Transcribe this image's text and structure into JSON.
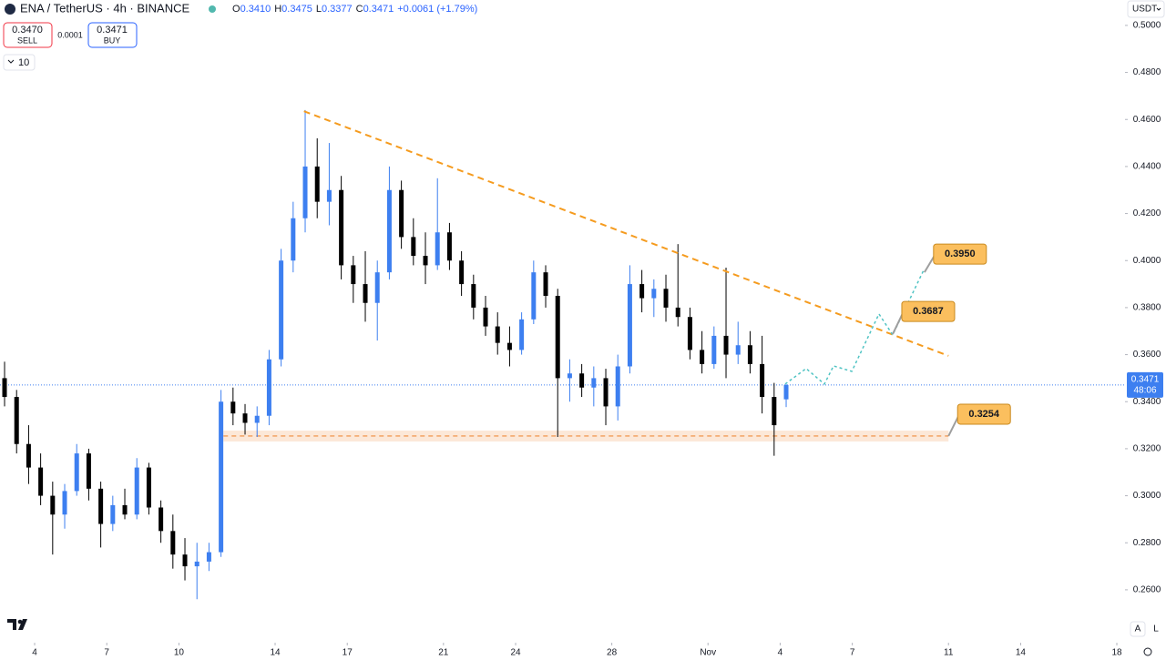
{
  "chart_data": {
    "type": "candlestick",
    "symbol": "ENA / TetherUS · 4h · BINANCE",
    "ohlc_header": {
      "o_key": "O",
      "o": "0.3410",
      "h_key": "H",
      "h": "0.3475",
      "l_key": "L",
      "l": "0.3377",
      "c_key": "C",
      "c": "0.3471",
      "change": "+0.0061 (+1.79%)"
    },
    "sell": {
      "price": "0.3470",
      "label": "SELL"
    },
    "spread": "0.0001",
    "buy": {
      "price": "0.3471",
      "label": "BUY"
    },
    "indicator_count": "10",
    "currency": "USDT",
    "price_tag": {
      "value": 0.3471,
      "label": "0.3471",
      "countdown": "48:06"
    },
    "scale_buttons": [
      "A",
      "L"
    ],
    "up_color": "#3d7ff0",
    "down_color": "#000000",
    "xlim": [
      2.56,
      49.34
    ],
    "ylim": [
      0.2379,
      0.5108
    ],
    "xticks": [
      4,
      7,
      10,
      14,
      17,
      21,
      24,
      28,
      {
        "value": 32,
        "label": "Nov"
      },
      {
        "value": 35,
        "label": "4"
      },
      {
        "value": 38,
        "label": "7"
      },
      {
        "value": 42,
        "label": "11"
      },
      {
        "value": 45,
        "label": "14"
      },
      {
        "value": 49,
        "label": "18"
      }
    ],
    "yticks": [
      {
        "value": 0.26,
        "label": "0.2600"
      },
      {
        "value": 0.28,
        "label": "0.2800"
      },
      {
        "value": 0.3,
        "label": "0.3000"
      },
      {
        "value": 0.32,
        "label": "0.3200"
      },
      {
        "value": 0.34,
        "label": "0.3400"
      },
      {
        "value": 0.36,
        "label": "0.3600"
      },
      {
        "value": 0.38,
        "label": "0.3800"
      },
      {
        "value": 0.4,
        "label": "0.4000"
      },
      {
        "value": 0.42,
        "label": "0.4200"
      },
      {
        "value": 0.44,
        "label": "0.4400"
      },
      {
        "value": 0.46,
        "label": "0.4600"
      },
      {
        "value": 0.48,
        "label": "0.4800"
      },
      {
        "value": 0.5,
        "label": "0.5000"
      }
    ],
    "x": [
      2.75,
      3.25,
      3.75,
      4.25,
      4.75,
      5.25,
      5.75,
      6.25,
      6.75,
      7.25,
      7.75,
      8.25,
      8.75,
      9.25,
      9.75,
      10.25,
      10.75,
      11.25,
      11.75,
      12.25,
      12.75,
      13.25,
      13.75,
      14.25,
      14.75,
      15.25,
      15.75,
      16.25,
      16.75,
      17.25,
      17.75,
      18.25,
      18.75,
      19.25,
      19.75,
      20.25,
      20.75,
      21.25,
      21.75,
      22.25,
      22.75,
      23.25,
      23.75,
      24.25,
      24.75,
      25.25,
      25.75,
      26.25,
      26.75,
      27.25,
      27.75,
      28.25,
      28.75,
      29.25,
      29.75,
      30.25,
      30.75,
      31.25,
      31.75,
      32.25,
      32.75,
      33.25,
      33.75,
      34.25,
      34.75,
      35.25
    ],
    "open": [
      0.35,
      0.342,
      0.322,
      0.312,
      0.3,
      0.292,
      0.302,
      0.318,
      0.303,
      0.288,
      0.296,
      0.292,
      0.312,
      0.295,
      0.285,
      0.275,
      0.27,
      0.272,
      0.276,
      0.34,
      0.335,
      0.331,
      0.334,
      0.358,
      0.4,
      0.418,
      0.44,
      0.425,
      0.43,
      0.398,
      0.39,
      0.382,
      0.395,
      0.43,
      0.41,
      0.402,
      0.398,
      0.412,
      0.4,
      0.39,
      0.38,
      0.372,
      0.365,
      0.362,
      0.375,
      0.395,
      0.385,
      0.35,
      0.352,
      0.346,
      0.35,
      0.338,
      0.355,
      0.39,
      0.384,
      0.388,
      0.38,
      0.376,
      0.362,
      0.356,
      0.368,
      0.36,
      0.364,
      0.356,
      0.342,
      0.341
    ],
    "high": [
      0.357,
      0.345,
      0.33,
      0.318,
      0.306,
      0.305,
      0.322,
      0.32,
      0.306,
      0.3,
      0.303,
      0.316,
      0.314,
      0.298,
      0.292,
      0.282,
      0.28,
      0.28,
      0.345,
      0.346,
      0.339,
      0.338,
      0.362,
      0.405,
      0.425,
      0.464,
      0.452,
      0.45,
      0.436,
      0.402,
      0.404,
      0.4,
      0.44,
      0.434,
      0.418,
      0.412,
      0.435,
      0.416,
      0.404,
      0.394,
      0.385,
      0.378,
      0.372,
      0.378,
      0.4,
      0.398,
      0.388,
      0.358,
      0.356,
      0.355,
      0.354,
      0.36,
      0.398,
      0.396,
      0.392,
      0.394,
      0.407,
      0.38,
      0.37,
      0.372,
      0.397,
      0.374,
      0.37,
      0.368,
      0.348,
      0.3475
    ],
    "low": [
      0.338,
      0.318,
      0.305,
      0.296,
      0.275,
      0.286,
      0.3,
      0.298,
      0.278,
      0.285,
      0.29,
      0.29,
      0.292,
      0.28,
      0.269,
      0.264,
      0.256,
      0.268,
      0.274,
      0.33,
      0.326,
      0.325,
      0.33,
      0.355,
      0.395,
      0.412,
      0.418,
      0.415,
      0.392,
      0.382,
      0.374,
      0.366,
      0.392,
      0.405,
      0.398,
      0.39,
      0.396,
      0.396,
      0.385,
      0.375,
      0.368,
      0.36,
      0.355,
      0.36,
      0.373,
      0.38,
      0.325,
      0.34,
      0.342,
      0.338,
      0.33,
      0.332,
      0.352,
      0.378,
      0.376,
      0.374,
      0.372,
      0.358,
      0.352,
      0.354,
      0.35,
      0.356,
      0.352,
      0.335,
      0.317,
      0.3377
    ],
    "close": [
      0.342,
      0.322,
      0.312,
      0.3,
      0.292,
      0.302,
      0.318,
      0.303,
      0.288,
      0.296,
      0.292,
      0.312,
      0.295,
      0.285,
      0.275,
      0.27,
      0.272,
      0.276,
      0.34,
      0.335,
      0.331,
      0.334,
      0.358,
      0.4,
      0.418,
      0.44,
      0.425,
      0.43,
      0.398,
      0.39,
      0.382,
      0.395,
      0.43,
      0.41,
      0.402,
      0.398,
      0.412,
      0.4,
      0.39,
      0.38,
      0.372,
      0.365,
      0.362,
      0.375,
      0.395,
      0.385,
      0.35,
      0.352,
      0.346,
      0.35,
      0.338,
      0.355,
      0.39,
      0.384,
      0.388,
      0.38,
      0.376,
      0.362,
      0.356,
      0.368,
      0.36,
      0.364,
      0.356,
      0.342,
      0.33,
      0.3471
    ],
    "trendline": {
      "color": "#f59b1e",
      "x": [
        15.2,
        42
      ],
      "values": [
        0.4635,
        0.3595
      ]
    },
    "support": {
      "color": "#f08a3c",
      "x": [
        11.85,
        42
      ],
      "value": 0.3254,
      "label": "0.3254"
    },
    "projection": {
      "color": "#4fc3c3",
      "x": [
        35.21,
        36.08,
        36.84,
        37.22,
        37.98,
        39.11,
        39.68,
        41.0
      ],
      "values": [
        0.3475,
        0.3541,
        0.3475,
        0.3552,
        0.3529,
        0.3773,
        0.3684,
        0.3966
      ]
    },
    "targets": [
      {
        "value": 0.395,
        "label": "0.3950"
      },
      {
        "value": 0.3687,
        "label": "0.3687"
      }
    ]
  }
}
